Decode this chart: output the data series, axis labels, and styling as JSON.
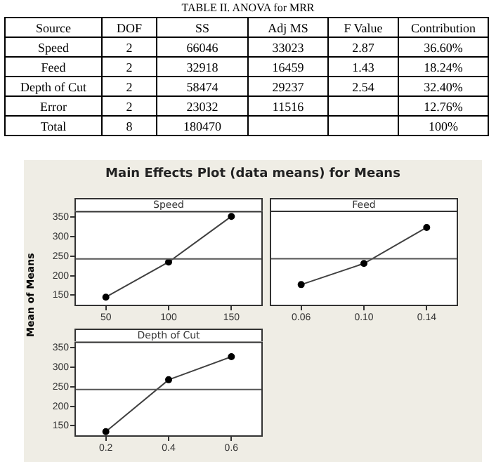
{
  "chart_data": [
    {
      "type": "other",
      "title": "TABLE II. ANOVA for MRR",
      "annotations": [
        "Source",
        "DOF",
        "SS",
        "Adj MS",
        "F Value",
        "Contribution",
        "Speed",
        "2",
        "66046",
        "33023",
        "2.87",
        "36.60%",
        "Feed",
        "2",
        "32918",
        "16459",
        "1.43",
        "18.24%",
        "Depth of Cut",
        "2",
        "58474",
        "29237",
        "2.54",
        "32.40%",
        "Error",
        "2",
        "23032",
        "11516",
        null,
        "12.76%",
        "Total",
        "8",
        "180470",
        null,
        null,
        "100%"
      ]
    },
    {
      "type": "line",
      "title": "Speed",
      "annotations": [
        "Main Effects Plot (data means) for Means"
      ],
      "ylabel": "Mean of Means",
      "categories": [
        "50",
        "100",
        "150"
      ],
      "values": [
        145,
        235,
        352
      ],
      "color": "#404040",
      "marker": "circle",
      "ylim": [
        122,
        366
      ],
      "yticks": [
        150,
        200,
        250,
        300,
        350
      ],
      "ref_lines": [
        {
          "axis": "y",
          "value": 243
        }
      ],
      "grid": false,
      "legend": false
    },
    {
      "type": "line",
      "title": "Feed",
      "categories": [
        "0.06",
        "0.10",
        "0.14"
      ],
      "values": [
        177,
        231,
        323
      ],
      "color": "#404040",
      "marker": "circle",
      "ylim": [
        122,
        366
      ],
      "yticks": [
        150,
        200,
        250,
        300,
        350
      ],
      "ref_lines": [
        {
          "axis": "y",
          "value": 243
        }
      ],
      "grid": false,
      "legend": false,
      "tick_labels": "x"
    },
    {
      "type": "line",
      "title": "Depth of Cut",
      "categories": [
        "0.2",
        "0.4",
        "0.6"
      ],
      "values": [
        135,
        268,
        327
      ],
      "color": "#404040",
      "marker": "circle",
      "ylim": [
        122,
        366
      ],
      "yticks": [
        150,
        200,
        250,
        300,
        350
      ],
      "ref_lines": [
        {
          "axis": "y",
          "value": 243
        }
      ],
      "grid": false,
      "legend": false
    }
  ]
}
